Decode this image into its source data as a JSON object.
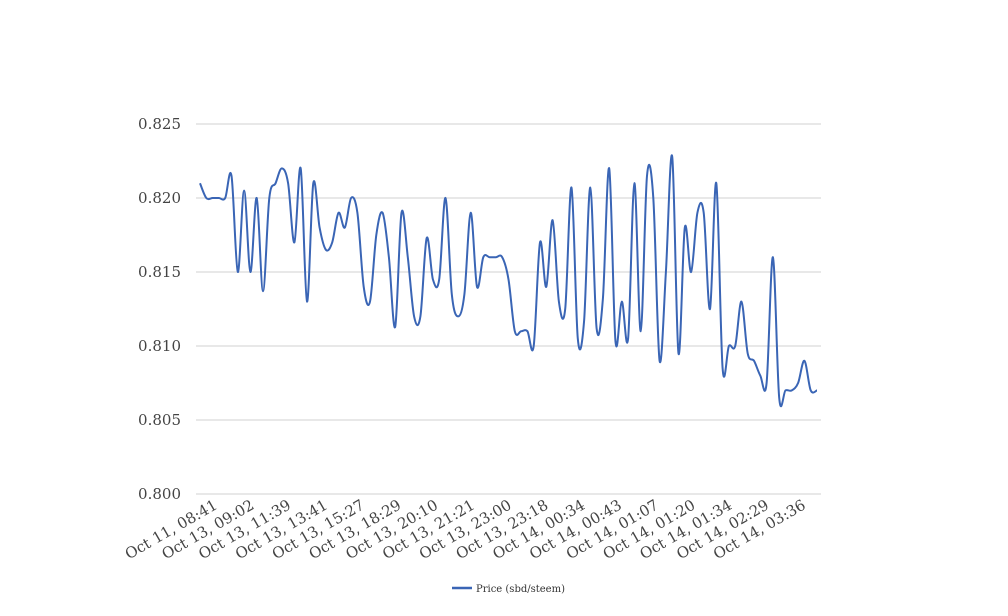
{
  "chart_data": {
    "type": "line",
    "title": "",
    "xlabel": "",
    "ylabel": "",
    "ylim": [
      0.8,
      0.825
    ],
    "y_ticks": [
      "0.800",
      "0.805",
      "0.810",
      "0.815",
      "0.820",
      "0.825"
    ],
    "grid": true,
    "legend_position": "bottom",
    "x_tick_labels": [
      "Oct 11, 08:41",
      "Oct 13, 09:02",
      "Oct 13, 11:39",
      "Oct 13, 13:41",
      "Oct 13, 15:27",
      "Oct 13, 18:29",
      "Oct 13, 20:10",
      "Oct 13, 21:21",
      "Oct 13, 23:00",
      "Oct 13, 23:18",
      "Oct 14, 00:34",
      "Oct 14, 00:43",
      "Oct 14, 01:07",
      "Oct 14, 01:20",
      "Oct 14, 01:34",
      "Oct 14, 02:29",
      "Oct 14, 03:36"
    ],
    "series": [
      {
        "name": "Price (sbd/steem)",
        "color": "#3a65b5",
        "values": [
          0.821,
          0.82,
          0.82,
          0.82,
          0.82,
          0.8215,
          0.815,
          0.8205,
          0.815,
          0.82,
          0.8137,
          0.82,
          0.821,
          0.822,
          0.821,
          0.817,
          0.822,
          0.813,
          0.821,
          0.818,
          0.8165,
          0.817,
          0.819,
          0.818,
          0.82,
          0.819,
          0.814,
          0.813,
          0.8175,
          0.819,
          0.816,
          0.8113,
          0.819,
          0.816,
          0.812,
          0.812,
          0.8173,
          0.8145,
          0.8145,
          0.82,
          0.8135,
          0.812,
          0.8135,
          0.819,
          0.814,
          0.816,
          0.816,
          0.816,
          0.816,
          0.8145,
          0.811,
          0.811,
          0.811,
          0.81,
          0.817,
          0.814,
          0.8185,
          0.813,
          0.8125,
          0.8207,
          0.8105,
          0.8117,
          0.8207,
          0.8112,
          0.8132,
          0.822,
          0.8103,
          0.813,
          0.8105,
          0.821,
          0.811,
          0.8215,
          0.82,
          0.809,
          0.815,
          0.8228,
          0.8095,
          0.818,
          0.815,
          0.819,
          0.819,
          0.8125,
          0.821,
          0.8085,
          0.81,
          0.81,
          0.813,
          0.8095,
          0.809,
          0.808,
          0.8075,
          0.816,
          0.8065,
          0.807,
          0.807,
          0.8075,
          0.809,
          0.807,
          0.807
        ]
      }
    ]
  }
}
